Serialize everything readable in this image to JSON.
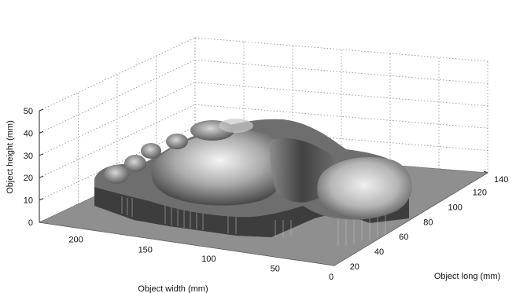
{
  "chart_data": {
    "type": "surface",
    "title": "",
    "xlabel": "Object width (mm)",
    "ylabel": "Object long (mm)",
    "zlabel": "Object height (mm)",
    "x_ticks": [
      "200",
      "150",
      "100",
      "50",
      "0"
    ],
    "y_ticks": [
      "20",
      "40",
      "60",
      "80",
      "100",
      "120",
      "140"
    ],
    "z_ticks": [
      "0",
      "10",
      "20",
      "30",
      "40",
      "50"
    ],
    "xlim": [
      0,
      230
    ],
    "ylim": [
      10,
      145
    ],
    "zlim": [
      0,
      50
    ],
    "grid": true,
    "colormap": "gray",
    "surface": {
      "description_free": true,
      "base_plane_height": 0,
      "regions": [
        {
          "name": "toes",
          "approx_height": 42
        },
        {
          "name": "ball",
          "approx_height": 38
        },
        {
          "name": "arch",
          "approx_height": 30
        },
        {
          "name": "heel",
          "approx_height": 34
        }
      ]
    }
  },
  "colors": {
    "background": "#ffffff",
    "surface_dark": "#3a3a3a",
    "surface_mid": "#7a7a7a",
    "surface_light": "#e6e6e6",
    "floor": "#8f8f8f"
  }
}
